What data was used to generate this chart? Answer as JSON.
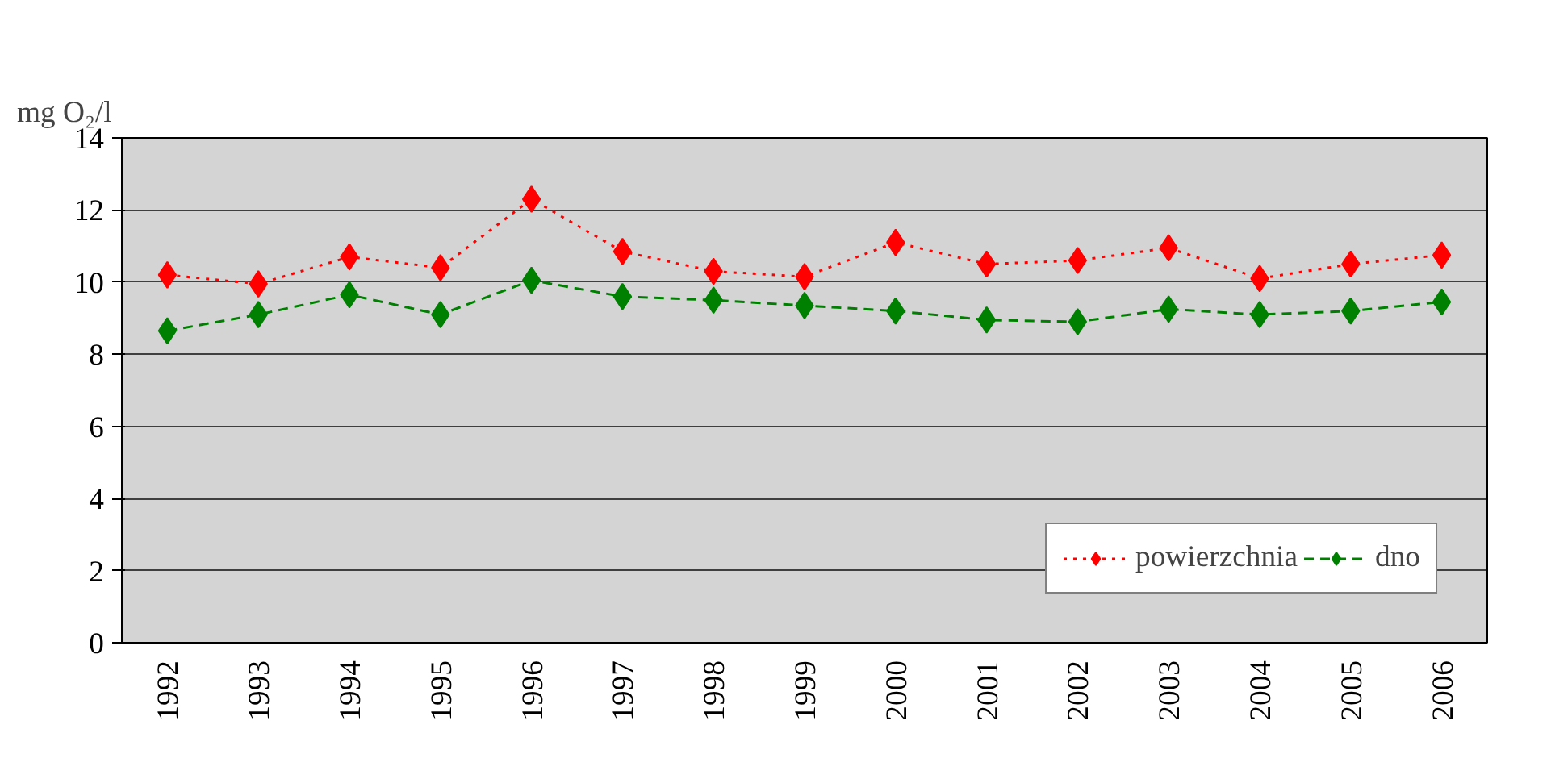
{
  "chart_data": {
    "type": "line",
    "ylabel": "mg O₂/l",
    "categories": [
      "1992",
      "1993",
      "1994",
      "1995",
      "1996",
      "1997",
      "1998",
      "1999",
      "2000",
      "2001",
      "2002",
      "2003",
      "2004",
      "2005",
      "2006"
    ],
    "series": [
      {
        "name": "powierzchnia",
        "color": "#ff0000",
        "line_style": "dotted",
        "values": [
          10.2,
          9.95,
          10.7,
          10.4,
          12.3,
          10.85,
          10.3,
          10.15,
          11.1,
          10.5,
          10.6,
          10.95,
          10.1,
          10.5,
          10.75
        ]
      },
      {
        "name": "dno",
        "color": "#008000",
        "line_style": "dashed",
        "values": [
          8.65,
          9.1,
          9.65,
          9.1,
          10.05,
          9.6,
          9.5,
          9.35,
          9.2,
          8.95,
          8.9,
          9.25,
          9.1,
          9.2,
          9.45
        ]
      }
    ],
    "marker": "diamond",
    "ylim": [
      0,
      14
    ],
    "yticks": [
      0,
      2,
      4,
      6,
      8,
      10,
      12,
      14
    ],
    "grid": "y",
    "legend": "bottom right"
  }
}
